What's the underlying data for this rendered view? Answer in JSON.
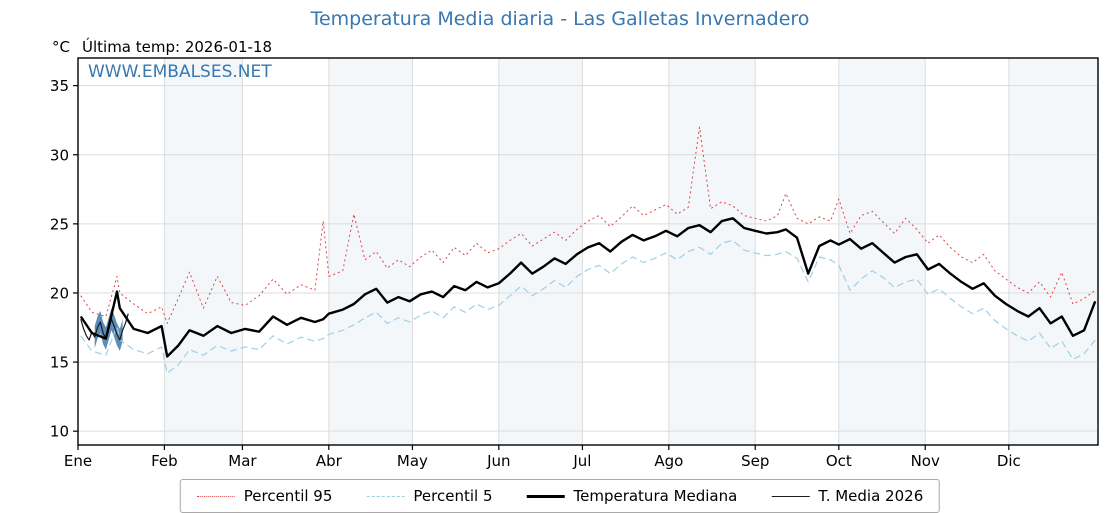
{
  "title": "Temperatura Media diaria - Las Galletas Invernadero",
  "header": {
    "unit": "°C",
    "last_temp_label": "Última temp: 2026-01-18"
  },
  "watermark": "WWW.EMBALSES.NET",
  "colors": {
    "title_blue": "#3877b0",
    "watermark_blue": "#3877b0",
    "grid": "#dcdcdc",
    "frame": "#000000",
    "month_band": "#f3f7fa",
    "p95_red": "#dd4444",
    "p5_lightblue": "#9fd0e6",
    "median_black": "#000000",
    "t2026_dark": "#1a1a1a",
    "band2026_blue": "#4a7fb5"
  },
  "legend": {
    "items": [
      {
        "label": "Percentil 95",
        "color": "#dd4444",
        "line": "dotted",
        "width": 1.4
      },
      {
        "label": "Percentil 5",
        "color": "#9fd0e6",
        "line": "dashed",
        "width": 1.8
      },
      {
        "label": "Temperatura Mediana",
        "color": "#000000",
        "line": "solid",
        "width": 3
      },
      {
        "label": "T. Media 2026",
        "color": "#1a1a1a",
        "line": "solid",
        "width": 1.2
      }
    ]
  },
  "chart_data": {
    "type": "line",
    "title": "Temperatura Media diaria - Las Galletas Invernadero",
    "xlabel": "",
    "ylabel": "°C",
    "grid": true,
    "legend_position": "bottom",
    "y_ticks": [
      10,
      15,
      20,
      25,
      30,
      35
    ],
    "y_range": [
      9.0,
      37.0
    ],
    "x_range_days": [
      0,
      366
    ],
    "x_ticks": {
      "labels": [
        "Ene",
        "Feb",
        "Mar",
        "Abr",
        "May",
        "Jun",
        "Jul",
        "Ago",
        "Sep",
        "Oct",
        "Nov",
        "Dic"
      ],
      "day_positions": [
        0,
        31,
        59,
        90,
        120,
        151,
        181,
        212,
        243,
        273,
        304,
        334
      ]
    },
    "days": [
      1,
      5,
      10,
      14,
      15,
      20,
      25,
      30,
      32,
      36,
      40,
      45,
      50,
      55,
      60,
      65,
      70,
      75,
      80,
      85,
      88,
      90,
      95,
      99,
      103,
      107,
      111,
      115,
      119,
      123,
      127,
      131,
      135,
      139,
      143,
      147,
      151,
      155,
      159,
      163,
      167,
      171,
      175,
      179,
      183,
      187,
      191,
      195,
      199,
      203,
      207,
      211,
      215,
      219,
      223,
      227,
      231,
      235,
      239,
      243,
      247,
      251,
      254,
      258,
      262,
      266,
      270,
      273,
      277,
      281,
      285,
      289,
      293,
      297,
      301,
      305,
      309,
      313,
      317,
      321,
      325,
      329,
      333,
      337,
      341,
      345,
      349,
      353,
      357,
      361,
      365
    ],
    "series": [
      {
        "name": "Percentil 95",
        "color": "#dd4444",
        "dash": "2 3",
        "width": 1,
        "values": [
          19.8,
          18.6,
          18.3,
          21.2,
          20.0,
          19.2,
          18.5,
          19.0,
          17.8,
          19.6,
          21.5,
          18.9,
          21.2,
          19.3,
          19.1,
          19.8,
          21.0,
          19.9,
          20.6,
          20.2,
          25.2,
          21.2,
          21.6,
          25.7,
          22.4,
          23.0,
          21.8,
          22.4,
          21.9,
          22.6,
          23.1,
          22.2,
          23.3,
          22.7,
          23.6,
          22.9,
          23.2,
          23.8,
          24.3,
          23.4,
          23.9,
          24.4,
          23.8,
          24.6,
          25.2,
          25.6,
          24.8,
          25.5,
          26.3,
          25.6,
          26.0,
          26.4,
          25.7,
          26.2,
          32.0,
          26.1,
          26.6,
          26.3,
          25.6,
          25.4,
          25.2,
          25.6,
          27.2,
          25.4,
          25.0,
          25.5,
          25.2,
          26.8,
          24.3,
          25.6,
          25.9,
          25.1,
          24.3,
          25.4,
          24.6,
          23.6,
          24.2,
          23.3,
          22.6,
          22.2,
          22.8,
          21.6,
          21.0,
          20.4,
          20.0,
          20.8,
          19.7,
          21.5,
          19.2,
          19.6,
          20.2
        ]
      },
      {
        "name": "Percentil 5",
        "color": "#9fd0e6",
        "dash": "7 4",
        "width": 1.2,
        "values": [
          16.9,
          15.8,
          15.5,
          17.6,
          16.6,
          15.9,
          15.6,
          16.1,
          14.2,
          14.8,
          15.9,
          15.5,
          16.2,
          15.8,
          16.1,
          15.9,
          16.9,
          16.3,
          16.8,
          16.5,
          16.7,
          17.0,
          17.3,
          17.7,
          18.2,
          18.6,
          17.8,
          18.2,
          17.9,
          18.4,
          18.7,
          18.2,
          19.0,
          18.6,
          19.2,
          18.8,
          19.1,
          19.8,
          20.5,
          19.8,
          20.3,
          20.9,
          20.4,
          21.2,
          21.7,
          22.0,
          21.4,
          22.1,
          22.6,
          22.2,
          22.5,
          22.9,
          22.4,
          23.0,
          23.3,
          22.8,
          23.6,
          23.8,
          23.1,
          22.9,
          22.7,
          22.8,
          23.0,
          22.5,
          20.8,
          22.6,
          22.4,
          22.0,
          20.2,
          21.0,
          21.6,
          21.1,
          20.4,
          20.8,
          21.0,
          19.9,
          20.3,
          19.6,
          19.0,
          18.5,
          18.9,
          18.0,
          17.4,
          16.9,
          16.5,
          17.1,
          16.0,
          16.5,
          15.2,
          15.6,
          16.6
        ]
      },
      {
        "name": "Temperatura Mediana",
        "color": "#000000",
        "dash": "",
        "width": 2.4,
        "values": [
          18.3,
          17.1,
          16.7,
          20.1,
          18.9,
          17.4,
          17.1,
          17.6,
          15.4,
          16.2,
          17.3,
          16.9,
          17.6,
          17.1,
          17.4,
          17.2,
          18.3,
          17.7,
          18.2,
          17.9,
          18.1,
          18.5,
          18.8,
          19.2,
          19.9,
          20.3,
          19.3,
          19.7,
          19.4,
          19.9,
          20.1,
          19.7,
          20.5,
          20.2,
          20.8,
          20.4,
          20.7,
          21.4,
          22.2,
          21.4,
          21.9,
          22.5,
          22.1,
          22.8,
          23.3,
          23.6,
          23.0,
          23.7,
          24.2,
          23.8,
          24.1,
          24.5,
          24.1,
          24.7,
          24.9,
          24.4,
          25.2,
          25.4,
          24.7,
          24.5,
          24.3,
          24.4,
          24.6,
          24.0,
          21.4,
          23.4,
          23.8,
          23.5,
          23.9,
          23.2,
          23.6,
          22.9,
          22.2,
          22.6,
          22.8,
          21.7,
          22.1,
          21.4,
          20.8,
          20.3,
          20.7,
          19.8,
          19.2,
          18.7,
          18.3,
          18.9,
          17.8,
          18.3,
          16.9,
          17.3,
          19.4
        ]
      }
    ],
    "t_media_2026": {
      "name": "T. Media 2026",
      "color": "#1a1a1a",
      "width": 1.2,
      "days": [
        1,
        2,
        3,
        4,
        5,
        6,
        7,
        8,
        9,
        10,
        11,
        12,
        13,
        14,
        15,
        16,
        17,
        18
      ],
      "values": [
        18.1,
        17.4,
        16.9,
        16.6,
        17.2,
        16.8,
        17.5,
        17.9,
        17.1,
        16.7,
        17.4,
        18.1,
        17.6,
        17.0,
        16.6,
        17.3,
        17.8,
        18.5
      ]
    },
    "band_2026": {
      "color": "#4a7fb5",
      "opacity": 0.9,
      "days": [
        6,
        7,
        8,
        9,
        10,
        11,
        12,
        13,
        14,
        15,
        16
      ],
      "upper": [
        17.6,
        18.3,
        18.7,
        17.9,
        17.5,
        18.2,
        18.9,
        18.4,
        17.8,
        17.4,
        18.1
      ],
      "lower": [
        16.0,
        16.7,
        17.1,
        16.3,
        15.9,
        16.6,
        17.3,
        16.8,
        16.2,
        15.8,
        16.5
      ]
    }
  }
}
